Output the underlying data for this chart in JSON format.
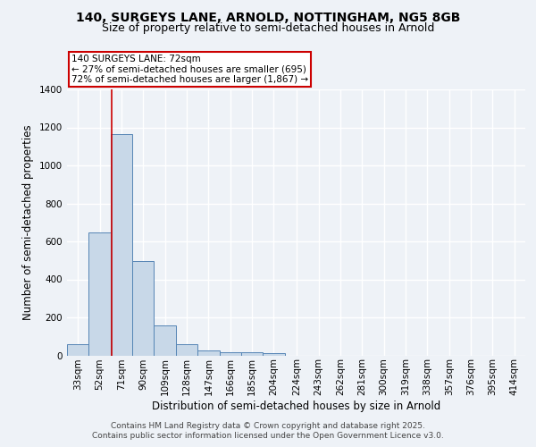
{
  "title_line1": "140, SURGEYS LANE, ARNOLD, NOTTINGHAM, NG5 8GB",
  "title_line2": "Size of property relative to semi-detached houses in Arnold",
  "xlabel": "Distribution of semi-detached houses by size in Arnold",
  "ylabel": "Number of semi-detached properties",
  "bins": [
    33,
    52,
    71,
    90,
    109,
    128,
    147,
    166,
    185,
    204,
    224,
    243,
    262,
    281,
    300,
    319,
    338,
    357,
    376,
    395,
    414
  ],
  "counts": [
    60,
    645,
    1165,
    495,
    160,
    58,
    28,
    18,
    15,
    12,
    0,
    0,
    0,
    0,
    0,
    0,
    0,
    0,
    0,
    0
  ],
  "bar_color": "#c8d8e8",
  "bar_edge_color": "#5585b5",
  "property_size": 72,
  "property_label": "140 SURGEYS LANE: 72sqm",
  "annotation_line1": "← 27% of semi-detached houses are smaller (695)",
  "annotation_line2": "72% of semi-detached houses are larger (1,867) →",
  "annotation_box_color": "#ffffff",
  "annotation_box_edge_color": "#cc0000",
  "vline_color": "#cc0000",
  "ylim": [
    0,
    1400
  ],
  "yticks": [
    0,
    200,
    400,
    600,
    800,
    1000,
    1200,
    1400
  ],
  "background_color": "#eef2f7",
  "grid_color": "#ffffff",
  "footer_line1": "Contains HM Land Registry data © Crown copyright and database right 2025.",
  "footer_line2": "Contains public sector information licensed under the Open Government Licence v3.0.",
  "title_fontsize": 10,
  "subtitle_fontsize": 9,
  "axis_label_fontsize": 8.5,
  "tick_fontsize": 7.5,
  "annotation_fontsize": 7.5,
  "footer_fontsize": 6.5
}
